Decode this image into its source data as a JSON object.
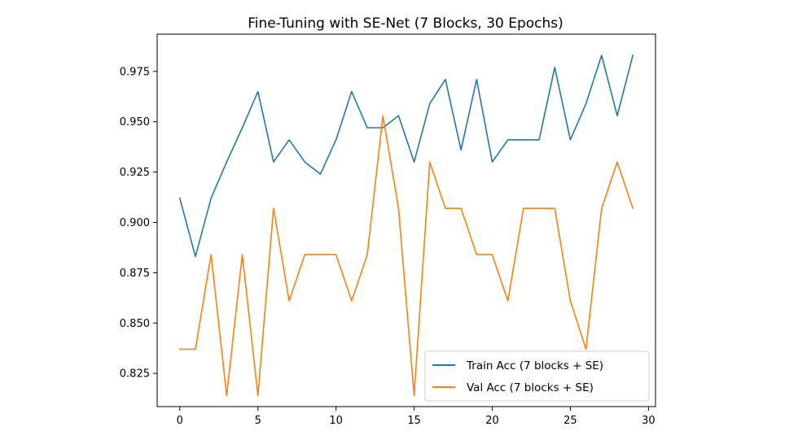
{
  "chart_data": {
    "type": "line",
    "title": "Fine-Tuning with SE-Net (7 Blocks, 30 Epochs)",
    "xlabel": "",
    "ylabel": "",
    "xlim": [
      -1.45,
      30.45
    ],
    "ylim": [
      0.8085,
      0.9935
    ],
    "xticks": [
      0,
      5,
      10,
      15,
      20,
      25,
      30
    ],
    "yticks": [
      0.825,
      0.85,
      0.875,
      0.9,
      0.925,
      0.95,
      0.975
    ],
    "ytick_labels": [
      "0.825",
      "0.850",
      "0.875",
      "0.900",
      "0.925",
      "0.950",
      "0.975"
    ],
    "grid": false,
    "legend_position": "lower-right",
    "x": [
      0,
      1,
      2,
      3,
      4,
      5,
      6,
      7,
      8,
      9,
      10,
      11,
      12,
      13,
      14,
      15,
      16,
      17,
      18,
      19,
      20,
      21,
      22,
      23,
      24,
      25,
      26,
      27,
      28,
      29
    ],
    "series": [
      {
        "name": "Train Acc (7 blocks + SE)",
        "color": "#1f77b4",
        "values": [
          0.912,
          0.883,
          0.912,
          0.93,
          0.947,
          0.965,
          0.93,
          0.941,
          0.93,
          0.924,
          0.941,
          0.965,
          0.947,
          0.947,
          0.953,
          0.93,
          0.959,
          0.971,
          0.936,
          0.971,
          0.93,
          0.941,
          0.941,
          0.941,
          0.977,
          0.941,
          0.959,
          0.983,
          0.953,
          0.983
        ]
      },
      {
        "name": "Val Acc (7 blocks + SE)",
        "color": "#ff7f0e",
        "values": [
          0.837,
          0.837,
          0.884,
          0.814,
          0.884,
          0.814,
          0.907,
          0.861,
          0.884,
          0.884,
          0.884,
          0.861,
          0.884,
          0.953,
          0.907,
          0.814,
          0.93,
          0.907,
          0.907,
          0.884,
          0.884,
          0.861,
          0.907,
          0.907,
          0.907,
          0.861,
          0.837,
          0.907,
          0.93,
          0.907
        ]
      }
    ]
  }
}
